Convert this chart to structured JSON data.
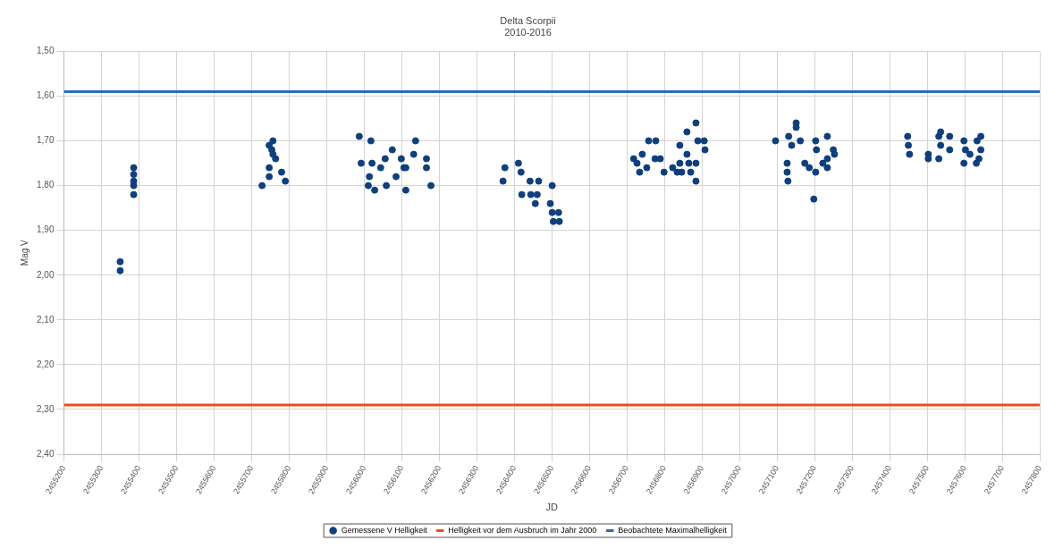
{
  "chart_data": {
    "type": "scatter",
    "title": "Delta Scorpii",
    "subtitle": "2010-2016",
    "xlabel": "JD",
    "ylabel": "Mag V",
    "xlim": [
      2455200,
      2457800
    ],
    "xticks": [
      2455200,
      2455300,
      2455400,
      2455500,
      2455600,
      2455700,
      2455800,
      2455900,
      2456000,
      2456100,
      2456200,
      2456300,
      2456400,
      2456500,
      2456600,
      2456700,
      2456800,
      2456900,
      2457000,
      2457100,
      2457200,
      2457300,
      2457400,
      2457500,
      2457600,
      2457700,
      2457800
    ],
    "ylim": [
      2.4,
      1.5
    ],
    "yticks": [
      {
        "value": 1.5,
        "label": "1,50"
      },
      {
        "value": 1.6,
        "label": "1,60"
      },
      {
        "value": 1.7,
        "label": "1,70"
      },
      {
        "value": 1.8,
        "label": "1,80"
      },
      {
        "value": 1.9,
        "label": "1,90"
      },
      {
        "value": 2.0,
        "label": "2,00"
      },
      {
        "value": 2.1,
        "label": "2,10"
      },
      {
        "value": 2.2,
        "label": "2,20"
      },
      {
        "value": 2.3,
        "label": "2,30"
      },
      {
        "value": 2.4,
        "label": "2,40"
      }
    ],
    "grid": true,
    "legend": "bottom",
    "series": [
      {
        "name": "Gemessene V Helligkeit",
        "marker": "circle",
        "color": "#0f3f7c",
        "x": [
          2455350,
          2455350,
          2455386,
          2455386,
          2455386,
          2455386,
          2455386,
          2455757,
          2455747,
          2455754,
          2455757,
          2455764,
          2455747,
          2455780,
          2455747,
          2455728,
          2455790,
          2455987,
          2456018,
          2456075,
          2456137,
          2455992,
          2456021,
          2456044,
          2456056,
          2456014,
          2456011,
          2456028,
          2456059,
          2456085,
          2456099,
          2456106,
          2456111,
          2456132,
          2456166,
          2456166,
          2456178,
          2456111,
          2456375,
          2456411,
          2456418,
          2456370,
          2456442,
          2456465,
          2456420,
          2456444,
          2456461,
          2456456,
          2456501,
          2456496,
          2456501,
          2456518,
          2456504,
          2456520,
          2456718,
          2456727,
          2456741,
          2456758,
          2456777,
          2456775,
          2456789,
          2456734,
          2456753,
          2456799,
          2456822,
          2456841,
          2456846,
          2456860,
          2456841,
          2456860,
          2456865,
          2456884,
          2456889,
          2456906,
          2456908,
          2456884,
          2456884,
          2456870,
          2456834,
          2457096,
          2457151,
          2457151,
          2457131,
          2457139,
          2457162,
          2457127,
          2457127,
          2457129,
          2457174,
          2457186,
          2457203,
          2457205,
          2457234,
          2457250,
          2457253,
          2457222,
          2457234,
          2457203,
          2457234,
          2457198,
          2457448,
          2457450,
          2457453,
          2457503,
          2457503,
          2457531,
          2457536,
          2457531,
          2457560,
          2457560,
          2457536,
          2457598,
          2457602,
          2457598,
          2457614,
          2457631,
          2457643,
          2457643,
          2457638,
          2457633
        ],
        "values": [
          1.97,
          1.99,
          1.76,
          1.775,
          1.79,
          1.8,
          1.82,
          1.7,
          1.71,
          1.72,
          1.73,
          1.74,
          1.76,
          1.77,
          1.78,
          1.8,
          1.79,
          1.69,
          1.7,
          1.72,
          1.7,
          1.75,
          1.75,
          1.76,
          1.74,
          1.78,
          1.8,
          1.81,
          1.8,
          1.78,
          1.74,
          1.76,
          1.76,
          1.73,
          1.74,
          1.76,
          1.8,
          1.81,
          1.76,
          1.75,
          1.77,
          1.79,
          1.79,
          1.79,
          1.82,
          1.82,
          1.82,
          1.84,
          1.8,
          1.84,
          1.86,
          1.86,
          1.88,
          1.88,
          1.74,
          1.75,
          1.73,
          1.7,
          1.7,
          1.74,
          1.74,
          1.77,
          1.76,
          1.77,
          1.76,
          1.75,
          1.77,
          1.68,
          1.71,
          1.73,
          1.75,
          1.66,
          1.7,
          1.7,
          1.72,
          1.75,
          1.79,
          1.77,
          1.77,
          1.7,
          1.66,
          1.67,
          1.69,
          1.71,
          1.7,
          1.75,
          1.77,
          1.79,
          1.75,
          1.76,
          1.7,
          1.72,
          1.69,
          1.72,
          1.73,
          1.75,
          1.74,
          1.77,
          1.76,
          1.83,
          1.69,
          1.71,
          1.73,
          1.73,
          1.74,
          1.74,
          1.68,
          1.69,
          1.69,
          1.72,
          1.71,
          1.7,
          1.72,
          1.75,
          1.73,
          1.75,
          1.69,
          1.72,
          1.74,
          1.7
        ]
      },
      {
        "name": "Helligkeit vor dem Ausbruch im Jahr 2000",
        "type": "line",
        "marker": "none",
        "color": "#e8501e",
        "x": [
          2455200,
          2457800
        ],
        "values": [
          2.29,
          2.29
        ]
      },
      {
        "name": "Beobachtete Maximalhelligkeit",
        "type": "line",
        "marker": "none",
        "color": "#2a6fb5",
        "x": [
          2455200,
          2457800
        ],
        "values": [
          1.59,
          1.59
        ]
      }
    ]
  }
}
